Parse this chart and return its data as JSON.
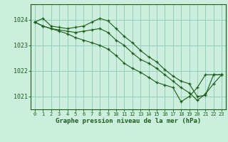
{
  "title": "Graphe pression niveau de la mer (hPa)",
  "background_color": "#cceedd",
  "grid_color": "#99ccbb",
  "line_color": "#1a5c1a",
  "marker_color": "#1a5c1a",
  "xlim": [
    -0.5,
    23.5
  ],
  "ylim": [
    1020.5,
    1024.6
  ],
  "yticks": [
    1021,
    1022,
    1023,
    1024
  ],
  "xticks": [
    0,
    1,
    2,
    3,
    4,
    5,
    6,
    7,
    8,
    9,
    10,
    11,
    12,
    13,
    14,
    15,
    16,
    17,
    18,
    19,
    20,
    21,
    22,
    23
  ],
  "series": [
    {
      "x": [
        0,
        1,
        2,
        3,
        4,
        5,
        6,
        7,
        8,
        9,
        10,
        11,
        12,
        13,
        14,
        15,
        16,
        17,
        18,
        19,
        20,
        21,
        22,
        23
      ],
      "y": [
        1023.9,
        1024.05,
        1023.75,
        1023.7,
        1023.65,
        1023.7,
        1023.75,
        1023.9,
        1024.05,
        1023.95,
        1023.65,
        1023.35,
        1023.1,
        1022.8,
        1022.55,
        1022.35,
        1022.05,
        1021.8,
        1021.6,
        1021.5,
        1021.0,
        1021.05,
        1021.85,
        1021.85
      ]
    },
    {
      "x": [
        0,
        1,
        2,
        3,
        4,
        5,
        6,
        7,
        8,
        9,
        10,
        11,
        12,
        13,
        14,
        15,
        16,
        17,
        18,
        19,
        20,
        21,
        22,
        23
      ],
      "y": [
        1023.9,
        1023.75,
        1023.65,
        1023.6,
        1023.55,
        1023.5,
        1023.55,
        1023.6,
        1023.65,
        1023.5,
        1023.2,
        1023.0,
        1022.7,
        1022.45,
        1022.3,
        1022.1,
        1021.85,
        1021.6,
        1021.35,
        1021.15,
        1020.85,
        1021.1,
        1021.5,
        1021.85
      ]
    },
    {
      "x": [
        0,
        1,
        2,
        3,
        4,
        5,
        6,
        7,
        8,
        9,
        10,
        11,
        12,
        13,
        14,
        15,
        16,
        17,
        18,
        19,
        20,
        21,
        22,
        23
      ],
      "y": [
        1023.9,
        1023.75,
        1023.65,
        1023.55,
        1023.45,
        1023.3,
        1023.2,
        1023.1,
        1023.0,
        1022.85,
        1022.6,
        1022.3,
        1022.1,
        1021.95,
        1021.75,
        1021.55,
        1021.45,
        1021.35,
        1020.8,
        1021.0,
        1021.35,
        1021.85,
        1021.85,
        1021.85
      ]
    }
  ]
}
